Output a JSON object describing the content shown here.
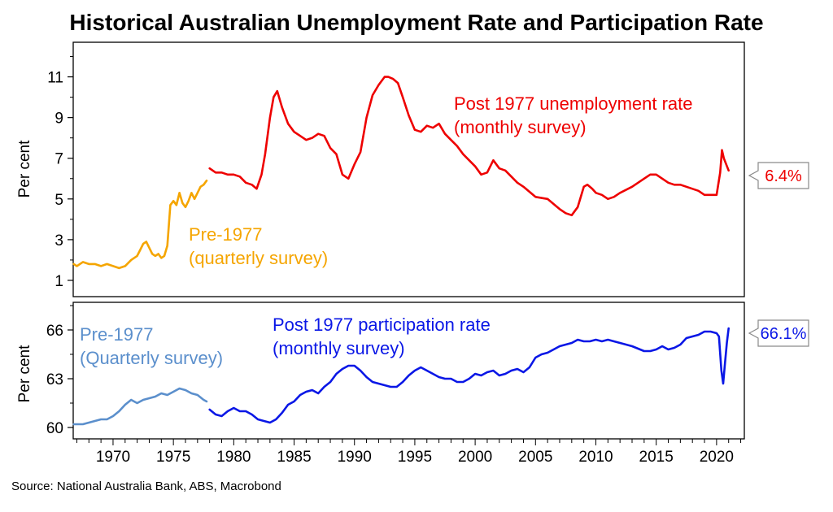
{
  "title": "Historical Australian Unemployment Rate and Participation Rate",
  "source": "Source: National Australia Bank, ABS, Macrobond",
  "colors": {
    "unemp_pre": "#f5a500",
    "unemp_post": "#ee0000",
    "part_pre": "#5b8fcc",
    "part_post": "#0a17e6"
  },
  "chart_data": [
    {
      "type": "line",
      "ylabel": "Per cent",
      "ylim": [
        0.2,
        12.7
      ],
      "yticks": [
        1,
        3,
        5,
        7,
        9,
        11
      ],
      "xlim": [
        1966.7,
        2022.3
      ],
      "xticks": [
        1970,
        1975,
        1980,
        1985,
        1990,
        1995,
        2000,
        2005,
        2010,
        2015,
        2020
      ],
      "series": [
        {
          "name": "Pre-1977 (quarterly survey)",
          "label_lines": [
            "Pre-1977",
            "(quarterly survey)"
          ],
          "color": "#f5a500",
          "x": [
            1966.75,
            1967.0,
            1967.5,
            1968.0,
            1968.5,
            1969.0,
            1969.5,
            1970.0,
            1970.5,
            1971.0,
            1971.5,
            1972.0,
            1972.25,
            1972.5,
            1972.75,
            1973.0,
            1973.25,
            1973.5,
            1973.75,
            1974.0,
            1974.25,
            1974.5,
            1974.75,
            1975.0,
            1975.25,
            1975.5,
            1975.75,
            1976.0,
            1976.25,
            1976.5,
            1976.75,
            1977.0,
            1977.25,
            1977.5,
            1977.75
          ],
          "values": [
            1.8,
            1.7,
            1.9,
            1.8,
            1.8,
            1.7,
            1.8,
            1.7,
            1.6,
            1.7,
            2.0,
            2.2,
            2.5,
            2.8,
            2.9,
            2.6,
            2.3,
            2.2,
            2.3,
            2.1,
            2.2,
            2.7,
            4.7,
            4.9,
            4.7,
            5.3,
            4.8,
            4.6,
            4.9,
            5.3,
            5.0,
            5.3,
            5.6,
            5.7,
            5.9
          ]
        },
        {
          "name": "Post 1977 unemployment rate (monthly survey)",
          "label_lines": [
            "Post 1977 unemployment rate",
            "(monthly survey)"
          ],
          "color": "#ee0000",
          "x": [
            1978.0,
            1978.5,
            1979.0,
            1979.5,
            1980.0,
            1980.5,
            1981.0,
            1981.5,
            1981.9,
            1982.3,
            1982.6,
            1983.0,
            1983.3,
            1983.6,
            1984.0,
            1984.5,
            1985.0,
            1985.5,
            1986.0,
            1986.5,
            1987.0,
            1987.5,
            1988.0,
            1988.5,
            1989.0,
            1989.5,
            1990.0,
            1990.5,
            1991.0,
            1991.5,
            1992.0,
            1992.5,
            1992.8,
            1993.2,
            1993.6,
            1994.0,
            1994.5,
            1995.0,
            1995.5,
            1996.0,
            1996.5,
            1997.0,
            1997.5,
            1998.0,
            1998.5,
            1999.0,
            1999.5,
            2000.0,
            2000.5,
            2001.0,
            2001.5,
            2002.0,
            2002.5,
            2003.0,
            2003.5,
            2004.0,
            2005.0,
            2006.0,
            2007.0,
            2007.5,
            2008.0,
            2008.5,
            2009.0,
            2009.3,
            2009.7,
            2010.0,
            2010.5,
            2011.0,
            2011.5,
            2012.0,
            2013.0,
            2014.0,
            2014.5,
            2015.0,
            2015.5,
            2016.0,
            2016.5,
            2017.0,
            2017.5,
            2018.0,
            2018.5,
            2019.0,
            2019.5,
            2020.0,
            2020.3,
            2020.45,
            2020.6,
            2020.8,
            2021.0
          ],
          "values": [
            6.5,
            6.3,
            6.3,
            6.2,
            6.2,
            6.1,
            5.8,
            5.7,
            5.5,
            6.2,
            7.2,
            9.0,
            10.0,
            10.3,
            9.5,
            8.7,
            8.3,
            8.1,
            7.9,
            8.0,
            8.2,
            8.1,
            7.5,
            7.2,
            6.2,
            6.0,
            6.7,
            7.3,
            9.0,
            10.1,
            10.6,
            11.0,
            11.0,
            10.9,
            10.7,
            10.0,
            9.1,
            8.4,
            8.3,
            8.6,
            8.5,
            8.7,
            8.2,
            7.9,
            7.6,
            7.2,
            6.9,
            6.6,
            6.2,
            6.3,
            6.9,
            6.5,
            6.4,
            6.1,
            5.8,
            5.6,
            5.1,
            5.0,
            4.5,
            4.3,
            4.2,
            4.6,
            5.6,
            5.7,
            5.5,
            5.3,
            5.2,
            5.0,
            5.1,
            5.3,
            5.6,
            6.0,
            6.2,
            6.2,
            6.0,
            5.8,
            5.7,
            5.7,
            5.6,
            5.5,
            5.4,
            5.2,
            5.2,
            5.2,
            6.3,
            7.4,
            7.0,
            6.7,
            6.4
          ]
        }
      ],
      "callout": "6.4%"
    },
    {
      "type": "line",
      "ylabel": "Per cent",
      "ylim": [
        59.3,
        67.7
      ],
      "yticks": [
        60,
        63,
        66
      ],
      "xlim": [
        1966.7,
        2022.3
      ],
      "xticks": [
        1970,
        1975,
        1980,
        1985,
        1990,
        1995,
        2000,
        2005,
        2010,
        2015,
        2020
      ],
      "series": [
        {
          "name": "Pre-1977 (Quarterly survey)",
          "label_lines": [
            "Pre-1977",
            "(Quarterly survey)"
          ],
          "color": "#5b8fcc",
          "x": [
            1966.75,
            1967.5,
            1968.0,
            1968.5,
            1969.0,
            1969.5,
            1970.0,
            1970.5,
            1971.0,
            1971.5,
            1972.0,
            1972.5,
            1973.0,
            1973.5,
            1974.0,
            1974.5,
            1975.0,
            1975.5,
            1976.0,
            1976.5,
            1977.0,
            1977.5,
            1977.75
          ],
          "values": [
            60.2,
            60.2,
            60.3,
            60.4,
            60.5,
            60.5,
            60.7,
            61.0,
            61.4,
            61.7,
            61.5,
            61.7,
            61.8,
            61.9,
            62.1,
            62.0,
            62.2,
            62.4,
            62.3,
            62.1,
            62.0,
            61.7,
            61.6
          ]
        },
        {
          "name": "Post 1977 participation rate (monthly survey)",
          "label_lines": [
            "Post 1977 participation rate",
            "(monthly survey)"
          ],
          "color": "#0a17e6",
          "x": [
            1978.0,
            1978.5,
            1979.0,
            1979.5,
            1980.0,
            1980.5,
            1981.0,
            1981.5,
            1982.0,
            1982.5,
            1983.0,
            1983.5,
            1984.0,
            1984.5,
            1985.0,
            1985.5,
            1986.0,
            1986.5,
            1987.0,
            1987.5,
            1988.0,
            1988.5,
            1989.0,
            1989.5,
            1990.0,
            1990.5,
            1991.0,
            1991.5,
            1992.0,
            1992.5,
            1993.0,
            1993.5,
            1994.0,
            1994.5,
            1995.0,
            1995.5,
            1996.0,
            1996.5,
            1997.0,
            1997.5,
            1998.0,
            1998.5,
            1999.0,
            1999.5,
            2000.0,
            2000.5,
            2001.0,
            2001.5,
            2002.0,
            2002.5,
            2003.0,
            2003.5,
            2004.0,
            2004.5,
            2005.0,
            2005.5,
            2006.0,
            2006.5,
            2007.0,
            2007.5,
            2008.0,
            2008.5,
            2009.0,
            2009.5,
            2010.0,
            2010.5,
            2011.0,
            2011.5,
            2012.0,
            2013.0,
            2014.0,
            2014.5,
            2015.0,
            2015.5,
            2016.0,
            2016.5,
            2017.0,
            2017.5,
            2018.0,
            2018.5,
            2019.0,
            2019.5,
            2020.0,
            2020.2,
            2020.4,
            2020.55,
            2020.7,
            2020.85,
            2021.0
          ],
          "values": [
            61.1,
            60.8,
            60.7,
            61.0,
            61.2,
            61.0,
            61.0,
            60.8,
            60.5,
            60.4,
            60.3,
            60.5,
            60.9,
            61.4,
            61.6,
            62.0,
            62.2,
            62.3,
            62.1,
            62.5,
            62.8,
            63.3,
            63.6,
            63.8,
            63.8,
            63.5,
            63.1,
            62.8,
            62.7,
            62.6,
            62.5,
            62.5,
            62.8,
            63.2,
            63.5,
            63.7,
            63.5,
            63.3,
            63.1,
            63.0,
            63.0,
            62.8,
            62.8,
            63.0,
            63.3,
            63.2,
            63.4,
            63.5,
            63.2,
            63.3,
            63.5,
            63.6,
            63.4,
            63.7,
            64.3,
            64.5,
            64.6,
            64.8,
            65.0,
            65.1,
            65.2,
            65.4,
            65.3,
            65.3,
            65.4,
            65.3,
            65.4,
            65.3,
            65.2,
            65.0,
            64.7,
            64.7,
            64.8,
            65.0,
            64.8,
            64.9,
            65.1,
            65.5,
            65.6,
            65.7,
            65.9,
            65.9,
            65.8,
            65.6,
            63.5,
            62.7,
            64.0,
            65.2,
            66.1
          ]
        }
      ],
      "callout": "66.1%"
    }
  ]
}
